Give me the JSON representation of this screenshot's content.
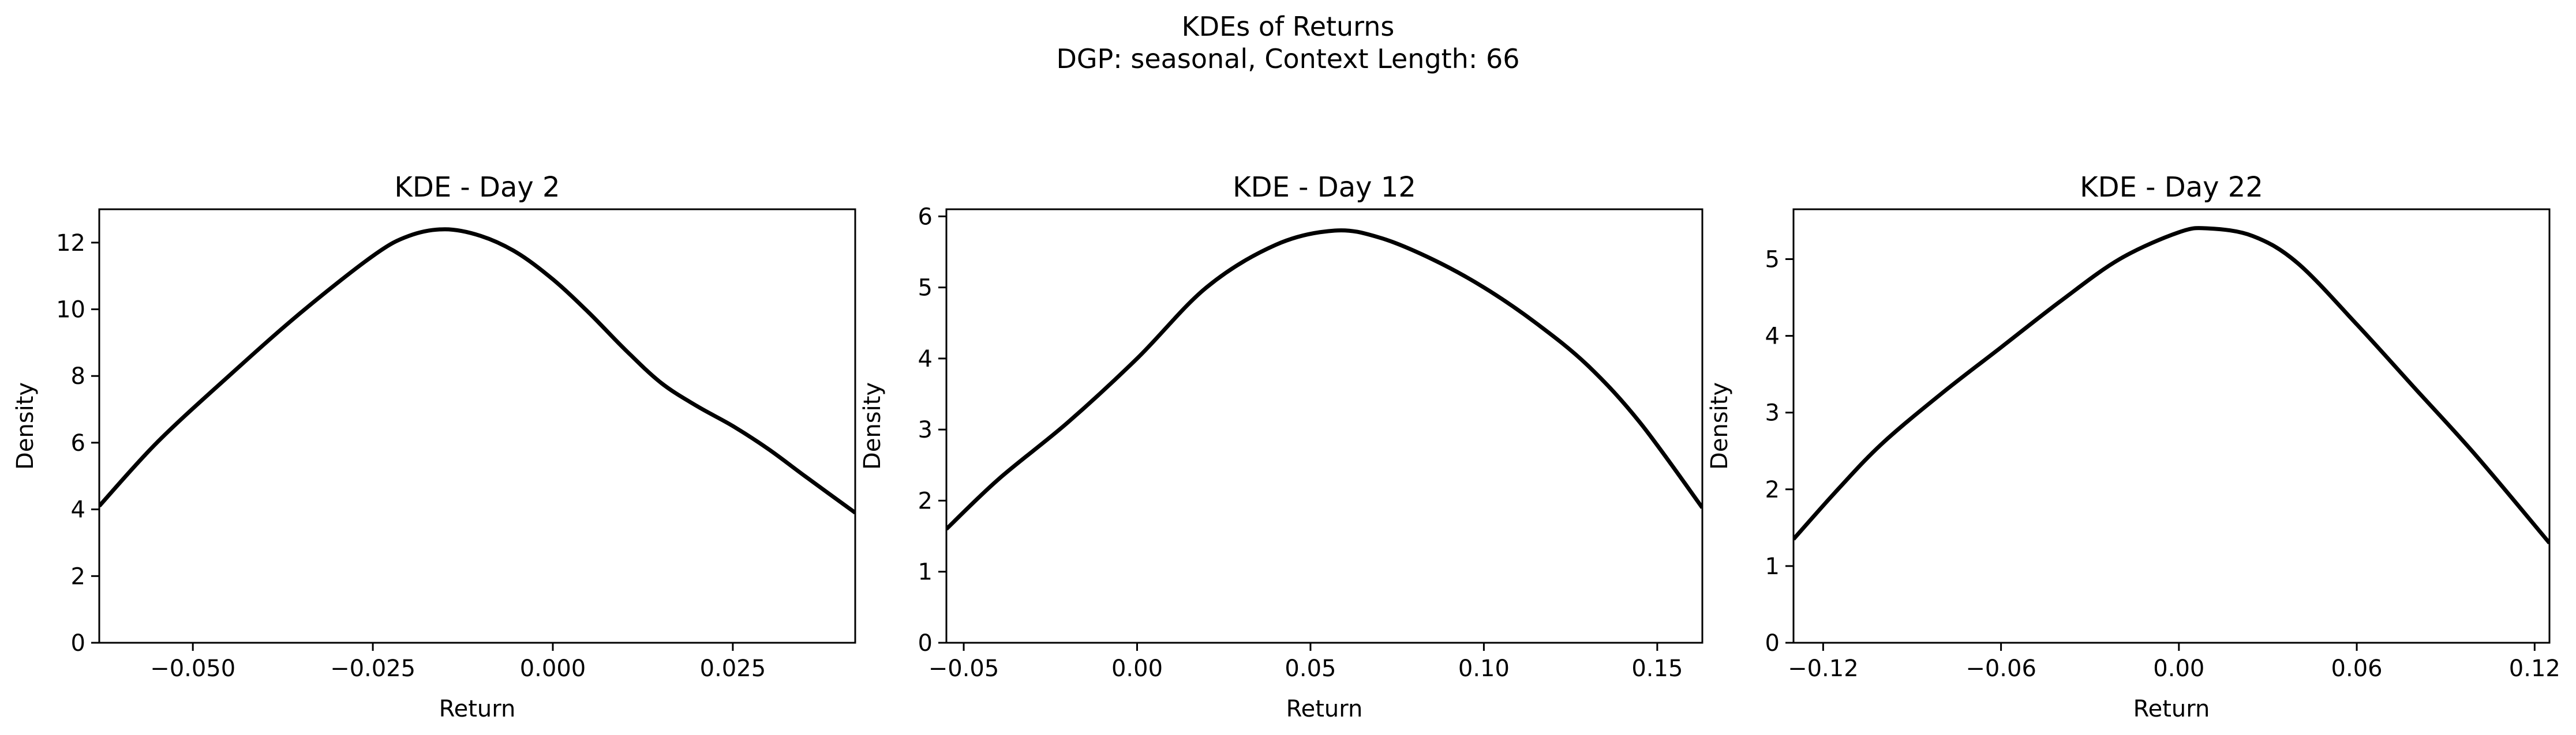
{
  "figure": {
    "title_line1": "KDEs of Returns",
    "title_line2": "DGP: seasonal, Context Length: 66"
  },
  "chart_data": [
    {
      "type": "line",
      "title": "KDE - Day 2",
      "xlabel": "Return",
      "ylabel": "Density",
      "xlim": [
        -0.063,
        0.042
      ],
      "ylim": [
        0,
        13.0
      ],
      "xticks": [
        -0.05,
        -0.025,
        0.0,
        0.025
      ],
      "xtick_labels": [
        "−0.050",
        "−0.025",
        "0.000",
        "0.025"
      ],
      "yticks": [
        0,
        2,
        4,
        6,
        8,
        10,
        12
      ],
      "ytick_labels": [
        "0",
        "2",
        "4",
        "6",
        "8",
        "10",
        "12"
      ],
      "grid": false,
      "line_color": "#000000",
      "x": [
        -0.063,
        -0.055,
        -0.045,
        -0.035,
        -0.025,
        -0.02,
        -0.015,
        -0.01,
        -0.005,
        0.0,
        0.005,
        0.01,
        0.015,
        0.02,
        0.025,
        0.03,
        0.035,
        0.042
      ],
      "y": [
        4.1,
        6.0,
        8.0,
        9.9,
        11.6,
        12.2,
        12.4,
        12.2,
        11.7,
        10.9,
        9.9,
        8.8,
        7.8,
        7.1,
        6.5,
        5.8,
        5.0,
        3.9
      ]
    },
    {
      "type": "line",
      "title": "KDE - Day 12",
      "xlabel": "Return",
      "ylabel": "Density",
      "xlim": [
        -0.055,
        0.163
      ],
      "ylim": [
        0,
        6.1
      ],
      "xticks": [
        -0.05,
        0.0,
        0.05,
        0.1,
        0.15
      ],
      "xtick_labels": [
        "−0.05",
        "0.00",
        "0.05",
        "0.10",
        "0.15"
      ],
      "yticks": [
        0,
        1,
        2,
        3,
        4,
        5,
        6
      ],
      "ytick_labels": [
        "0",
        "1",
        "2",
        "3",
        "4",
        "5",
        "6"
      ],
      "grid": false,
      "line_color": "#000000",
      "x": [
        -0.055,
        -0.04,
        -0.02,
        0.0,
        0.02,
        0.04,
        0.057,
        0.07,
        0.085,
        0.1,
        0.115,
        0.13,
        0.145,
        0.163
      ],
      "y": [
        1.6,
        2.3,
        3.1,
        4.0,
        5.0,
        5.6,
        5.8,
        5.7,
        5.4,
        5.0,
        4.5,
        3.9,
        3.1,
        1.9
      ]
    },
    {
      "type": "line",
      "title": "KDE - Day 22",
      "xlabel": "Return",
      "ylabel": "Density",
      "xlim": [
        -0.13,
        0.125
      ],
      "ylim": [
        0,
        5.65
      ],
      "xticks": [
        -0.12,
        -0.06,
        0.0,
        0.06,
        0.12
      ],
      "xtick_labels": [
        "−0.12",
        "−0.06",
        "0.00",
        "0.06",
        "0.12"
      ],
      "yticks": [
        0,
        1,
        2,
        3,
        4,
        5
      ],
      "ytick_labels": [
        "0",
        "1",
        "2",
        "3",
        "4",
        "5"
      ],
      "grid": false,
      "line_color": "#000000",
      "x": [
        -0.13,
        -0.115,
        -0.1,
        -0.08,
        -0.06,
        -0.04,
        -0.02,
        0.0,
        0.01,
        0.025,
        0.04,
        0.06,
        0.08,
        0.1,
        0.125
      ],
      "y": [
        1.35,
        2.0,
        2.6,
        3.25,
        3.85,
        4.45,
        5.0,
        5.35,
        5.4,
        5.3,
        4.95,
        4.15,
        3.3,
        2.45,
        1.3
      ]
    }
  ]
}
